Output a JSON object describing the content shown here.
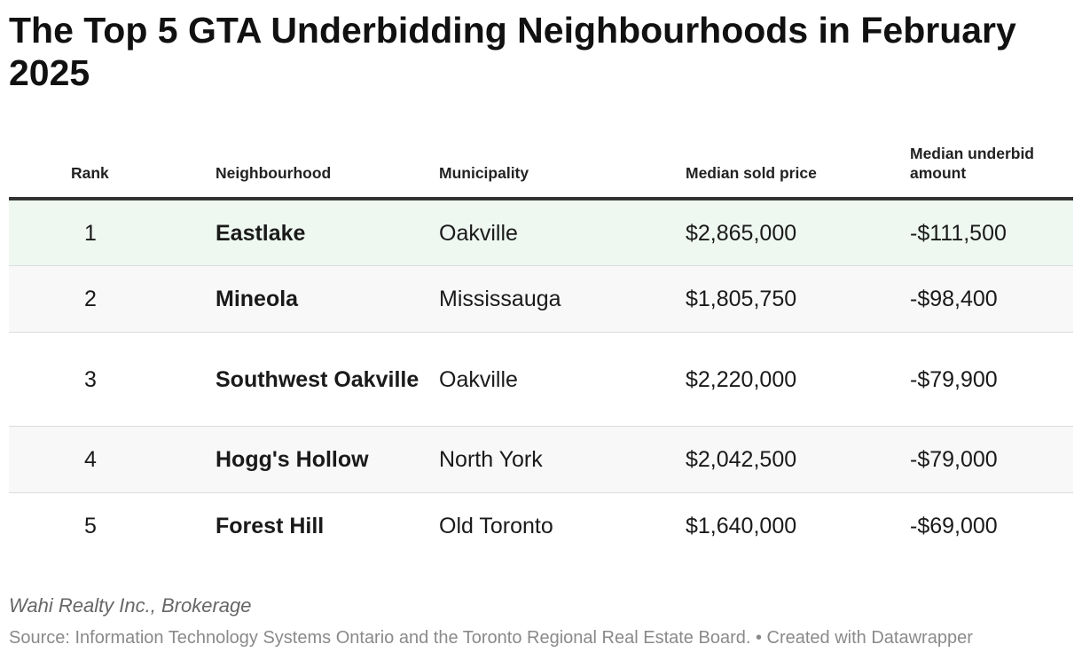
{
  "title": "The Top 5 GTA Underbidding Neighbourhoods in February 2025",
  "chart_data": {
    "type": "table",
    "columns": [
      "Rank",
      "Neighbourhood",
      "Municipality",
      "Median sold price",
      "Median underbid amount"
    ],
    "rows": [
      {
        "rank": "1",
        "neighbourhood": "Eastlake",
        "municipality": "Oakville",
        "median_sold_price": "$2,865,000",
        "median_underbid": "-$111,500"
      },
      {
        "rank": "2",
        "neighbourhood": "Mineola",
        "municipality": "Mississauga",
        "median_sold_price": "$1,805,750",
        "median_underbid": "-$98,400"
      },
      {
        "rank": "3",
        "neighbourhood": "Southwest Oakville",
        "municipality": "Oakville",
        "median_sold_price": "$2,220,000",
        "median_underbid": "-$79,900"
      },
      {
        "rank": "4",
        "neighbourhood": "Hogg's Hollow",
        "municipality": "North York",
        "median_sold_price": "$2,042,500",
        "median_underbid": "-$79,000"
      },
      {
        "rank": "5",
        "neighbourhood": "Forest Hill",
        "municipality": "Old Toronto",
        "median_sold_price": "$1,640,000",
        "median_underbid": "-$69,000"
      }
    ]
  },
  "footer": {
    "organization": "Wahi Realty Inc., Brokerage",
    "source": "Source: Information Technology Systems Ontario and the Toronto Regional Real Estate Board. • Created with Datawrapper"
  },
  "colors": {
    "highlight_row": "#eef8f1",
    "alt_row": "#f8f8f8",
    "header_rule": "#333333"
  }
}
